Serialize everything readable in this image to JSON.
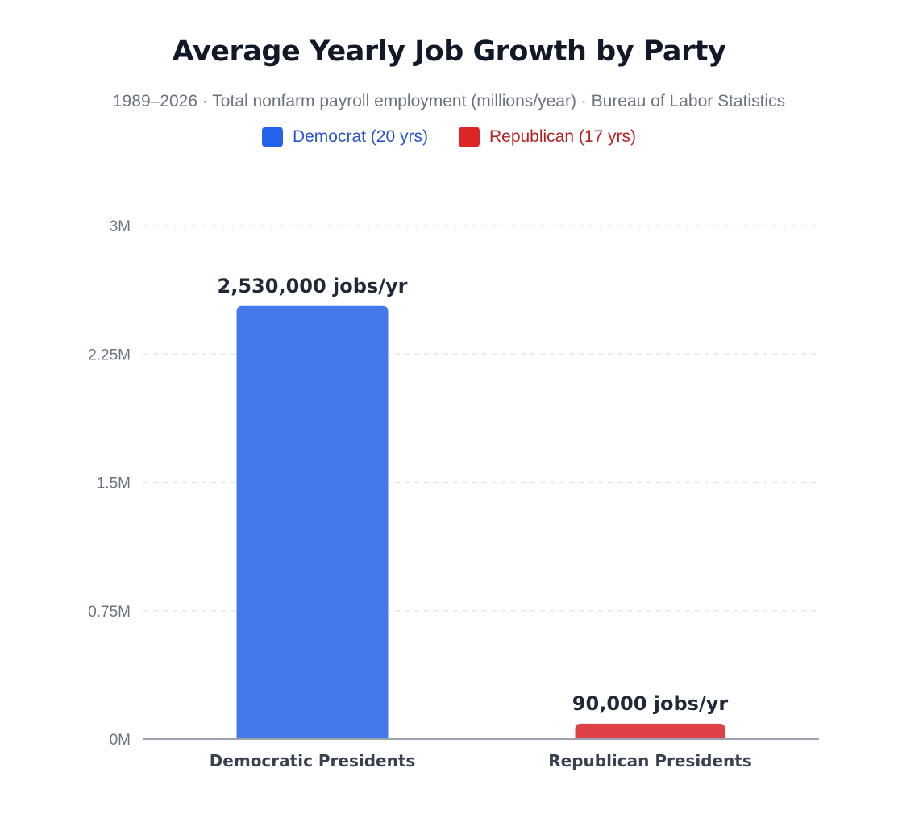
{
  "chart_data": {
    "type": "bar",
    "title": "Average Yearly Job Growth by Party",
    "subtitle": "1989–2026 · Total nonfarm payroll employment (millions/year) · Bureau of Labor Statistics",
    "categories": [
      "Democratic Presidents",
      "Republican Presidents"
    ],
    "values": [
      2530000,
      90000
    ],
    "data_labels": [
      "2,530,000 jobs/yr",
      "90,000 jobs/yr"
    ],
    "colors": [
      "#4479ea",
      "#de4146"
    ],
    "legend": [
      {
        "label": "Democrat (20 yrs)",
        "color": "#2563eb",
        "text_color": "#2b55c8"
      },
      {
        "label": "Republican (17 yrs)",
        "color": "#dc2626",
        "text_color": "#b42323"
      }
    ],
    "legend_position": "top",
    "ylim": [
      0,
      3000000
    ],
    "yticks": [
      0,
      750000,
      1500000,
      2250000,
      3000000
    ],
    "ytick_labels": [
      "0M",
      "0.75M",
      "1.5M",
      "2.25M",
      "3M"
    ],
    "grid": true,
    "xlabel": "",
    "ylabel": ""
  }
}
